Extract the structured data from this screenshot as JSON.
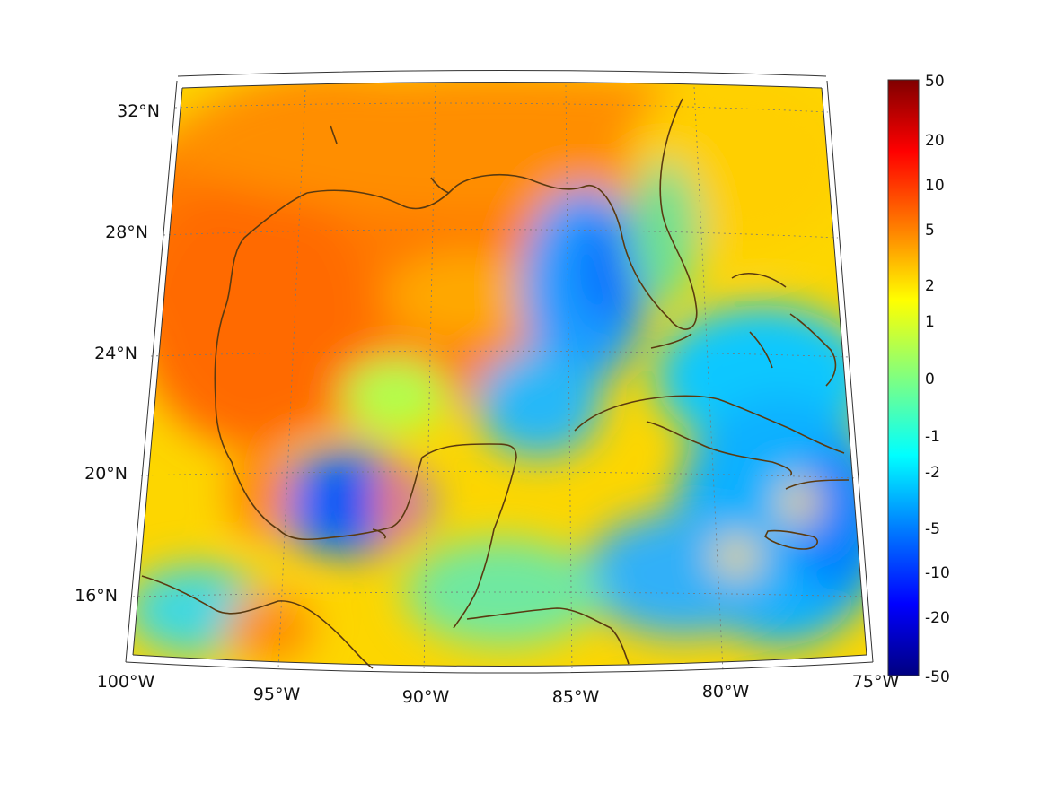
{
  "map": {
    "projection": "conic",
    "lon_range": [
      -100,
      -75
    ],
    "lat_range": [
      14,
      33
    ],
    "lat_labels": [
      "32°N",
      "28°N",
      "24°N",
      "20°N",
      "16°N"
    ],
    "lon_labels": [
      "100°W",
      "95°W",
      "90°W",
      "85°W",
      "80°W",
      "75°W"
    ],
    "coastline_color": "#5a3a10",
    "grid": "dotted"
  },
  "colorbar": {
    "labels": [
      "50",
      "20",
      "10",
      "5",
      "2",
      "1",
      "0",
      "-1",
      "-2",
      "-5",
      "-10",
      "-20",
      "-50"
    ],
    "colormap": "jet",
    "scale": "symmetric-log"
  }
}
